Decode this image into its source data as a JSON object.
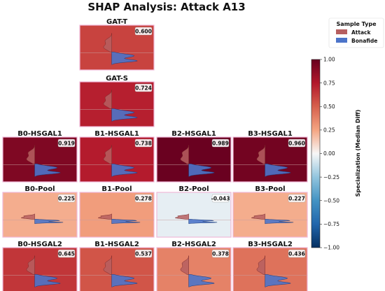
{
  "title": "SHAP Analysis: Attack A13",
  "legend": {
    "title": "Sample Type",
    "items": [
      {
        "label": "Attack",
        "color": "#b65f60"
      },
      {
        "label": "Bonafide",
        "color": "#4c74c9"
      }
    ]
  },
  "colorbar": {
    "label": "Specialization (Median Diff)",
    "min": -1.0,
    "max": 1.0,
    "ticks": [
      "1.00",
      "0.75",
      "0.50",
      "0.25",
      "0.00",
      "−0.25",
      "−0.50",
      "−0.75",
      "−1.00"
    ],
    "tick_values": [
      1.0,
      0.75,
      0.5,
      0.25,
      0.0,
      -0.25,
      -0.5,
      -0.75,
      -1.0
    ]
  },
  "chart_data": {
    "type": "heatmap",
    "description_colormap": "RdBu_r",
    "panels": [
      {
        "title": "GAT-T",
        "value": 0.6,
        "label": "0.600",
        "row": 0,
        "col": 1
      },
      {
        "title": "GAT-S",
        "value": 0.724,
        "label": "0.724",
        "row": 1,
        "col": 1
      },
      {
        "title": "B0-HSGAL1",
        "value": 0.919,
        "label": "0.919",
        "row": 2,
        "col": 0
      },
      {
        "title": "B1-HSGAL1",
        "value": 0.738,
        "label": "0.738",
        "row": 2,
        "col": 1
      },
      {
        "title": "B2-HSGAL1",
        "value": 0.989,
        "label": "0.989",
        "row": 2,
        "col": 2
      },
      {
        "title": "B3-HSGAL1",
        "value": 0.96,
        "label": "0.960",
        "row": 2,
        "col": 3
      },
      {
        "title": "B0-Pool",
        "value": 0.225,
        "label": "0.225",
        "row": 3,
        "col": 0
      },
      {
        "title": "B1-Pool",
        "value": 0.278,
        "label": "0.278",
        "row": 3,
        "col": 1
      },
      {
        "title": "B2-Pool",
        "value": -0.043,
        "label": "-0.043",
        "row": 3,
        "col": 2
      },
      {
        "title": "B3-Pool",
        "value": 0.227,
        "label": "0.227",
        "row": 3,
        "col": 3
      },
      {
        "title": "B0-HSGAL2",
        "value": 0.645,
        "label": "0.645",
        "row": 4,
        "col": 0
      },
      {
        "title": "B1-HSGAL2",
        "value": 0.537,
        "label": "0.537",
        "row": 4,
        "col": 1
      },
      {
        "title": "B2-HSGAL2",
        "value": 0.378,
        "label": "0.378",
        "row": 4,
        "col": 2
      },
      {
        "title": "B3-HSGAL2",
        "value": 0.436,
        "label": "0.436",
        "row": 4,
        "col": 3
      }
    ]
  }
}
